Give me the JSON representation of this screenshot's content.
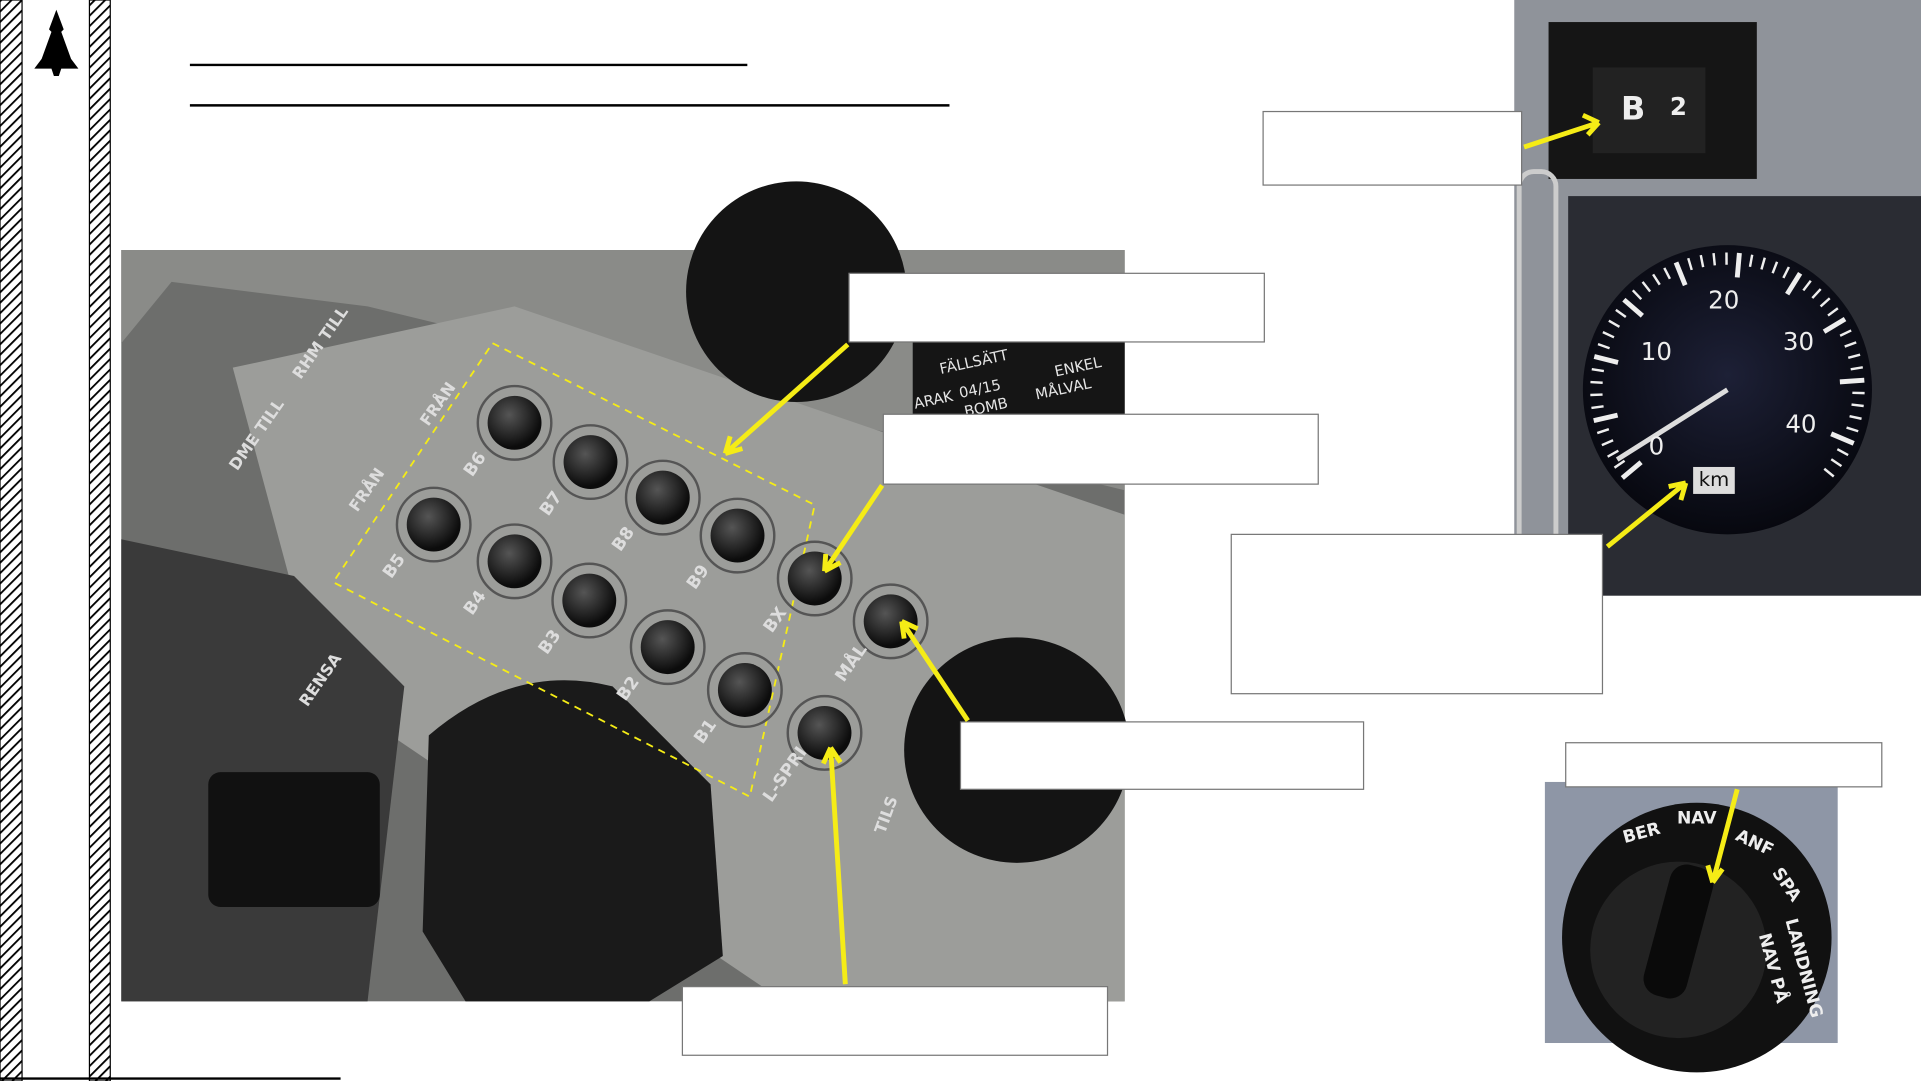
{
  "panel_labels": {
    "buttons": [
      "B6",
      "B7",
      "B8",
      "B9",
      "B5",
      "B4",
      "B3",
      "B2",
      "B1",
      "BX",
      "MÅL",
      "L-SPRI"
    ],
    "switches": [
      "RHM TILL",
      "FRÅN",
      "DME TILL",
      "FRÅN",
      "RENSA",
      "TILS"
    ],
    "placards": [
      "FÄLLSÄTT",
      "ENKEL",
      "MÅLVAL",
      "04/15",
      "ARAK",
      "BOMB"
    ]
  },
  "counter": [
    "B",
    "2"
  ],
  "gauge": {
    "ticks": [
      "0",
      "10",
      "20",
      "30",
      "40"
    ],
    "unit": "km"
  },
  "selector": [
    "BER",
    "NAV",
    "ANF",
    "SPA",
    "LANDNING",
    "NAV PÅ"
  ]
}
